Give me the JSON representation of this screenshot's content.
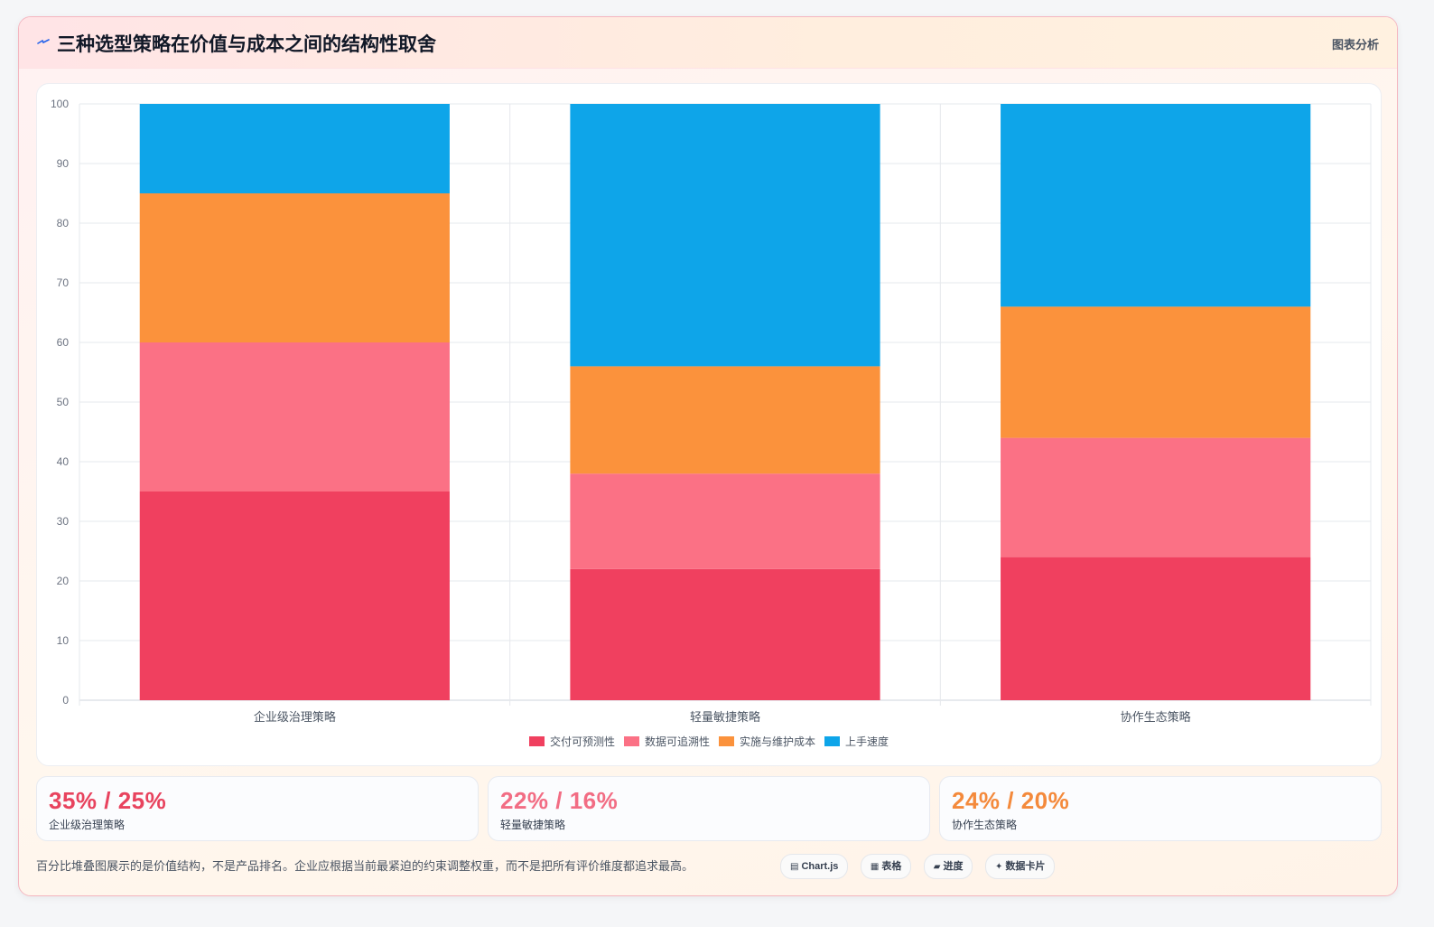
{
  "header": {
    "title": "三种选型策略在价值与成本之间的结构性取舍",
    "tag": "图表分析",
    "icon": "lightning-icon"
  },
  "chart_data": {
    "type": "bar",
    "stacked": true,
    "categories": [
      "企业级治理策略",
      "轻量敏捷策略",
      "协作生态策略"
    ],
    "series": [
      {
        "name": "交付可预测性",
        "color": "#f0405f",
        "values": [
          35,
          22,
          24
        ]
      },
      {
        "name": "数据可追溯性",
        "color": "#fb7185",
        "values": [
          25,
          16,
          20
        ]
      },
      {
        "name": "实施与维护成本",
        "color": "#fb923c",
        "values": [
          25,
          18,
          22
        ]
      },
      {
        "name": "上手速度",
        "color": "#0ea5e9",
        "values": [
          15,
          44,
          34
        ]
      }
    ],
    "ylim": [
      0,
      100
    ],
    "yticks": [
      0,
      10,
      20,
      30,
      40,
      50,
      60,
      70,
      80,
      90,
      100
    ],
    "grid": true,
    "legend": "bottom"
  },
  "stats": [
    {
      "value": "35% / 25%",
      "label": "企业级治理策略",
      "color": "#e8435e"
    },
    {
      "value": "22% / 16%",
      "label": "轻量敏捷策略",
      "color": "#f26d84"
    },
    {
      "value": "24% / 20%",
      "label": "协作生态策略",
      "color": "#f48a3c"
    }
  ],
  "note": "百分比堆叠图展示的是价值结构，不是产品排名。企业应根据当前最紧迫的约束调整权重，而不是把所有评价维度都追求最高。",
  "pills": [
    {
      "icon": "▤",
      "icon_name": "chart-icon",
      "label": "Chart.js"
    },
    {
      "icon": "▦",
      "icon_name": "table-icon",
      "label": "表格"
    },
    {
      "icon": "▰",
      "icon_name": "progress-icon",
      "label": "进度"
    },
    {
      "icon": "✦",
      "icon_name": "sparkle-icon",
      "label": "数据卡片"
    }
  ]
}
